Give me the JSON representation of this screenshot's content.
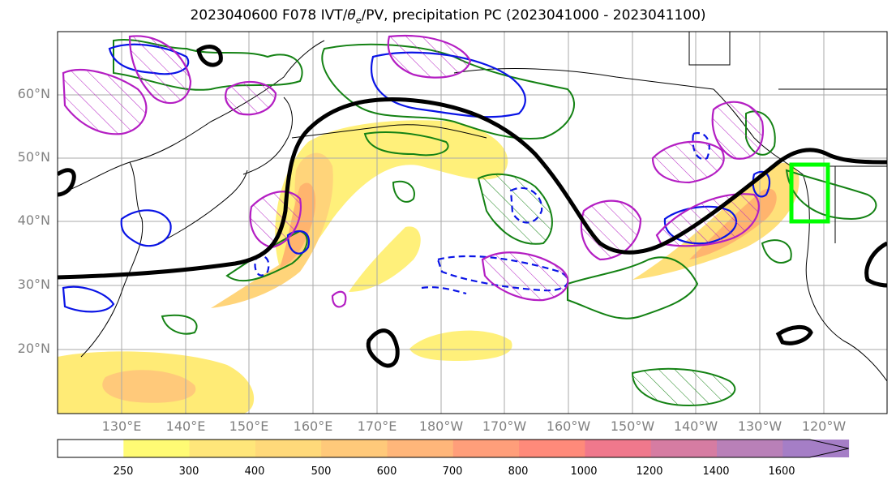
{
  "title_main": "2023040600 F078 IVT/",
  "title_theta": "θ",
  "title_sub": "e",
  "title_rest": "/PV, precipitation PC (2023041000 - 2023041100)",
  "lat_labels": [
    "60°N",
    "50°N",
    "40°N",
    "30°N",
    "20°N"
  ],
  "lon_labels": [
    "130°E",
    "140°E",
    "150°E",
    "160°E",
    "170°E",
    "180°W",
    "170°W",
    "160°W",
    "150°W",
    "140°W",
    "130°W",
    "120°W"
  ],
  "colorbar": {
    "ticks": [
      "250",
      "300",
      "400",
      "500",
      "600",
      "700",
      "800",
      "1000",
      "1200",
      "1400",
      "1600"
    ],
    "colors": [
      "#ffffff",
      "#fffb74",
      "#ffe67a",
      "#ffd97a",
      "#ffc97a",
      "#ffb67a",
      "#ff9e7a",
      "#ff8a7a",
      "#f0788c",
      "#d67ca2",
      "#b980b8",
      "#a57ec6"
    ]
  },
  "colors": {
    "ivt_fill": "#ffe36e",
    "ivt_core": "#ffb070",
    "pv_contour": "#000000",
    "green_contour": "#148214",
    "blue_contour": "#0a14e6",
    "magenta_contour": "#b41ec3",
    "target_box": "#00ff00",
    "gridline": "#aaaaaa"
  }
}
